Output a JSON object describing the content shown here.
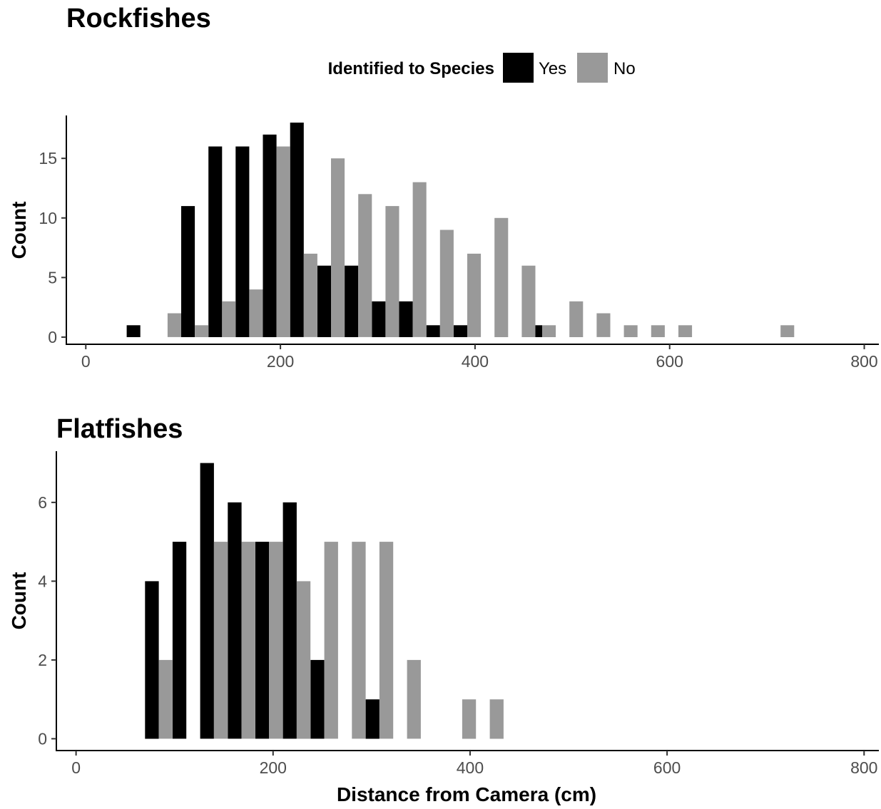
{
  "legend": {
    "title": "Identified to Species",
    "items": [
      {
        "label": "Yes",
        "color": "#000000"
      },
      {
        "label": "No",
        "color": "#999999"
      }
    ]
  },
  "x_axis_title": "Distance from Camera (cm)",
  "chart_data": [
    {
      "type": "bar",
      "title": "Rockfishes",
      "xlabel": "",
      "ylabel": "Count",
      "xlim": [
        -20,
        815
      ],
      "ylim": [
        -0.6,
        18.6
      ],
      "x_ticks": [
        0,
        200,
        400,
        600,
        800
      ],
      "y_ticks": [
        0,
        5,
        10,
        15
      ],
      "bin_width": 28,
      "series": [
        {
          "name": "Yes",
          "color": "#000000",
          "points": [
            {
              "x": 49,
              "y": 1
            },
            {
              "x": 105,
              "y": 11
            },
            {
              "x": 133,
              "y": 16
            },
            {
              "x": 161,
              "y": 16
            },
            {
              "x": 189,
              "y": 17
            },
            {
              "x": 217,
              "y": 18
            },
            {
              "x": 245,
              "y": 6
            },
            {
              "x": 273,
              "y": 6
            },
            {
              "x": 301,
              "y": 3
            },
            {
              "x": 329,
              "y": 3
            },
            {
              "x": 357,
              "y": 1
            },
            {
              "x": 385,
              "y": 1
            },
            {
              "x": 462,
              "y": 1
            }
          ]
        },
        {
          "name": "No",
          "color": "#999999",
          "points": [
            {
              "x": 91,
              "y": 2
            },
            {
              "x": 119,
              "y": 1
            },
            {
              "x": 147,
              "y": 3
            },
            {
              "x": 175,
              "y": 4
            },
            {
              "x": 203,
              "y": 16
            },
            {
              "x": 231,
              "y": 7
            },
            {
              "x": 259,
              "y": 15
            },
            {
              "x": 287,
              "y": 12
            },
            {
              "x": 315,
              "y": 11
            },
            {
              "x": 343,
              "y": 13
            },
            {
              "x": 371,
              "y": 9
            },
            {
              "x": 399,
              "y": 7
            },
            {
              "x": 427,
              "y": 10
            },
            {
              "x": 455,
              "y": 6
            },
            {
              "x": 476,
              "y": 1
            },
            {
              "x": 504,
              "y": 3
            },
            {
              "x": 532,
              "y": 2
            },
            {
              "x": 560,
              "y": 1
            },
            {
              "x": 588,
              "y": 1
            },
            {
              "x": 616,
              "y": 1
            },
            {
              "x": 721,
              "y": 1
            }
          ]
        }
      ]
    },
    {
      "type": "bar",
      "title": "Flatfishes",
      "xlabel": "Distance from Camera (cm)",
      "ylabel": "Count",
      "xlim": [
        -20,
        815
      ],
      "ylim": [
        -0.3,
        7.3
      ],
      "x_ticks": [
        0,
        200,
        400,
        600,
        800
      ],
      "y_ticks": [
        0,
        2,
        4,
        6
      ],
      "bin_width": 28,
      "series": [
        {
          "name": "Yes",
          "color": "#000000",
          "points": [
            {
              "x": 77,
              "y": 4
            },
            {
              "x": 105,
              "y": 5
            },
            {
              "x": 133,
              "y": 7
            },
            {
              "x": 161,
              "y": 6
            },
            {
              "x": 189,
              "y": 5
            },
            {
              "x": 217,
              "y": 6
            },
            {
              "x": 245,
              "y": 2
            },
            {
              "x": 301,
              "y": 1
            }
          ]
        },
        {
          "name": "No",
          "color": "#999999",
          "points": [
            {
              "x": 91,
              "y": 2
            },
            {
              "x": 147,
              "y": 5
            },
            {
              "x": 175,
              "y": 5
            },
            {
              "x": 203,
              "y": 5
            },
            {
              "x": 231,
              "y": 4
            },
            {
              "x": 259,
              "y": 5
            },
            {
              "x": 287,
              "y": 5
            },
            {
              "x": 315,
              "y": 5
            },
            {
              "x": 343,
              "y": 2
            },
            {
              "x": 399,
              "y": 1
            },
            {
              "x": 427,
              "y": 1
            }
          ]
        }
      ]
    }
  ]
}
